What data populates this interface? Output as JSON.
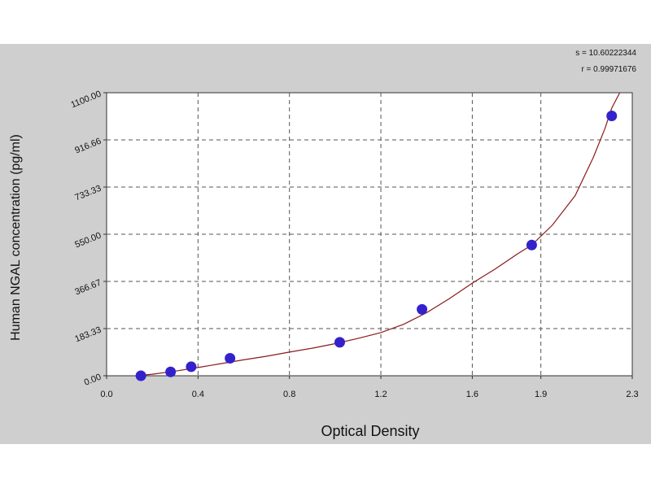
{
  "chart_data": {
    "type": "scatter",
    "xlabel": "Optical Density",
    "ylabel": "Human NGAL concentration (pg/ml)",
    "xlim": [
      0.0,
      2.3
    ],
    "ylim": [
      0.0,
      1100.0
    ],
    "x_ticks": [
      "0.0",
      "0.4",
      "0.8",
      "1.2",
      "1.6",
      "1.9",
      "2.3"
    ],
    "x_tick_values": [
      0.0,
      0.4,
      0.8,
      1.2,
      1.6,
      1.9,
      2.3
    ],
    "y_ticks": [
      "0.00",
      "183.33",
      "366.67",
      "550.00",
      "733.33",
      "916.66",
      "1100.00"
    ],
    "y_tick_values": [
      0,
      183.33,
      366.67,
      550.0,
      733.33,
      916.66,
      1100.0
    ],
    "grid": true,
    "stats": {
      "s_label": "s = 10.60222344",
      "r_label": "r = 0.99971676"
    },
    "series": [
      {
        "points": [
          {
            "x": 0.15,
            "y": 0
          },
          {
            "x": 0.28,
            "y": 15
          },
          {
            "x": 0.37,
            "y": 35
          },
          {
            "x": 0.54,
            "y": 68
          },
          {
            "x": 1.02,
            "y": 130
          },
          {
            "x": 1.38,
            "y": 258
          },
          {
            "x": 1.86,
            "y": 508
          },
          {
            "x": 2.21,
            "y": 1010
          }
        ],
        "marker_color": "#3322cc"
      },
      {
        "type": "line",
        "curve": [
          {
            "x": 0.13,
            "y": -3
          },
          {
            "x": 0.2,
            "y": 6
          },
          {
            "x": 0.3,
            "y": 18
          },
          {
            "x": 0.4,
            "y": 32
          },
          {
            "x": 0.5,
            "y": 47
          },
          {
            "x": 0.6,
            "y": 62
          },
          {
            "x": 0.7,
            "y": 76
          },
          {
            "x": 0.8,
            "y": 92
          },
          {
            "x": 0.9,
            "y": 107
          },
          {
            "x": 1.0,
            "y": 125
          },
          {
            "x": 1.1,
            "y": 145
          },
          {
            "x": 1.2,
            "y": 168
          },
          {
            "x": 1.3,
            "y": 200
          },
          {
            "x": 1.4,
            "y": 245
          },
          {
            "x": 1.5,
            "y": 300
          },
          {
            "x": 1.6,
            "y": 360
          },
          {
            "x": 1.7,
            "y": 415
          },
          {
            "x": 1.8,
            "y": 475
          },
          {
            "x": 1.86,
            "y": 508
          },
          {
            "x": 1.95,
            "y": 585
          },
          {
            "x": 2.05,
            "y": 700
          },
          {
            "x": 2.13,
            "y": 850
          },
          {
            "x": 2.18,
            "y": 960
          },
          {
            "x": 2.21,
            "y": 1040
          },
          {
            "x": 2.245,
            "y": 1100
          }
        ],
        "line_color": "#8b1a1a"
      }
    ]
  }
}
